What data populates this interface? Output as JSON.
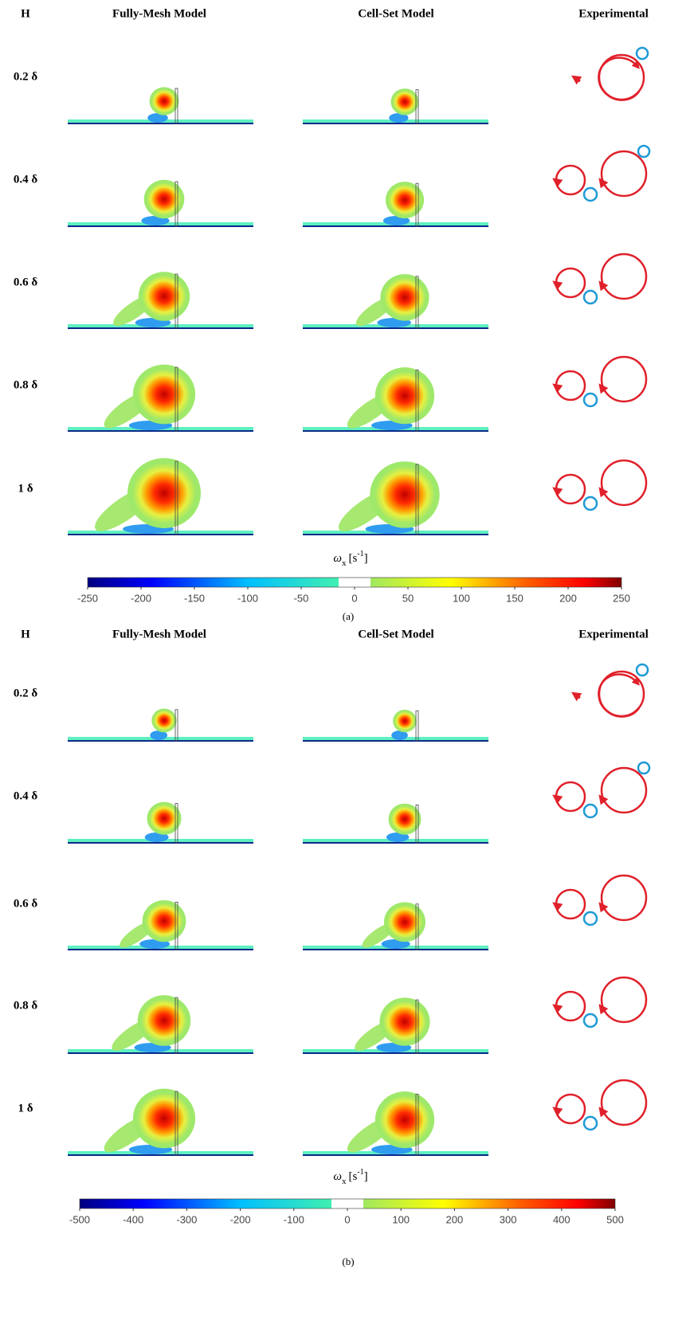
{
  "panels": [
    {
      "headers": [
        "H",
        "Fully-Mesh Model",
        "Cell-Set Model",
        "Experimental"
      ],
      "rows": [
        "0.2 δ",
        "0.4 δ",
        "0.6 δ",
        "0.8 δ",
        "1 δ"
      ],
      "colorbar": {
        "label": {
          "symbol": "ω",
          "subscript": "x",
          "unit": "[s",
          "exponent": "-1",
          "close": "]"
        },
        "clim": [
          -250,
          250
        ],
        "ticks": [
          -250,
          -200,
          -150,
          -100,
          -50,
          0,
          50,
          100,
          150,
          200,
          250
        ]
      },
      "caption": "(a)"
    },
    {
      "headers": [
        "H",
        "Fully-Mesh Model",
        "Cell-Set Model",
        "Experimental"
      ],
      "rows": [
        "0.2 δ",
        "0.4 δ",
        "0.6 δ",
        "0.8 δ",
        "1 δ"
      ],
      "colorbar": {
        "label": {
          "symbol": "ω",
          "subscript": "x",
          "unit": "[s",
          "exponent": "-1",
          "close": "]"
        },
        "clim": [
          -500,
          500
        ],
        "ticks": [
          -500,
          -400,
          -300,
          -200,
          -100,
          0,
          100,
          200,
          300,
          400,
          500
        ]
      },
      "caption": "(b)"
    }
  ]
}
